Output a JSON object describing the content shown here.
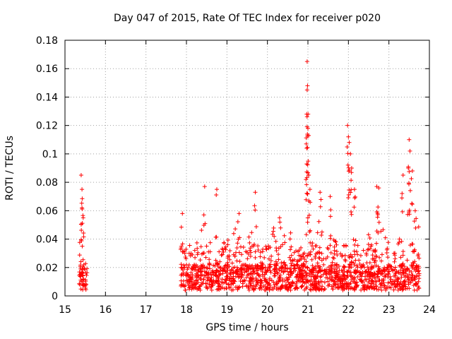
{
  "chart_data": {
    "type": "scatter",
    "title": "Day 047 of 2015, Rate Of TEC Index for receiver p020",
    "xlabel": "GPS time / hours",
    "ylabel": "ROTI / TECUs",
    "xlim": [
      15,
      24
    ],
    "ylim": [
      0,
      0.18
    ],
    "xticks": [
      "15",
      "16",
      "17",
      "18",
      "19",
      "20",
      "21",
      "22",
      "23",
      "24"
    ],
    "yticks": [
      "0",
      "0.02",
      "0.04",
      "0.06",
      "0.08",
      "0.1",
      "0.12",
      "0.14",
      "0.16",
      "0.18"
    ],
    "grid": true,
    "marker": "+",
    "color": "#ff0000",
    "series": [
      {
        "name": "ROTI",
        "segments": [
          {
            "x_start": 15.35,
            "x_end": 15.55,
            "typical_max": 0.035
          },
          {
            "x_start": 17.85,
            "x_end": 23.75,
            "typical_max": 0.045
          }
        ],
        "peaks": [
          {
            "x": 15.4,
            "y": 0.085
          },
          {
            "x": 15.42,
            "y": 0.075
          },
          {
            "x": 15.42,
            "y": 0.062
          },
          {
            "x": 15.45,
            "y": 0.055
          },
          {
            "x": 17.9,
            "y": 0.058
          },
          {
            "x": 18.45,
            "y": 0.077
          },
          {
            "x": 18.75,
            "y": 0.075
          },
          {
            "x": 19.3,
            "y": 0.058
          },
          {
            "x": 19.7,
            "y": 0.073
          },
          {
            "x": 20.3,
            "y": 0.055
          },
          {
            "x": 20.98,
            "y": 0.165
          },
          {
            "x": 20.99,
            "y": 0.148
          },
          {
            "x": 20.98,
            "y": 0.145
          },
          {
            "x": 20.97,
            "y": 0.128
          },
          {
            "x": 21.0,
            "y": 0.118
          },
          {
            "x": 20.96,
            "y": 0.107
          },
          {
            "x": 20.97,
            "y": 0.104
          },
          {
            "x": 21.02,
            "y": 0.085
          },
          {
            "x": 21.05,
            "y": 0.075
          },
          {
            "x": 21.3,
            "y": 0.073
          },
          {
            "x": 21.55,
            "y": 0.07
          },
          {
            "x": 21.98,
            "y": 0.12
          },
          {
            "x": 22.0,
            "y": 0.112
          },
          {
            "x": 22.02,
            "y": 0.108
          },
          {
            "x": 22.05,
            "y": 0.1
          },
          {
            "x": 22.08,
            "y": 0.09
          },
          {
            "x": 22.15,
            "y": 0.075
          },
          {
            "x": 22.7,
            "y": 0.077
          },
          {
            "x": 22.75,
            "y": 0.076
          },
          {
            "x": 23.35,
            "y": 0.085
          },
          {
            "x": 23.5,
            "y": 0.11
          },
          {
            "x": 23.52,
            "y": 0.102
          },
          {
            "x": 23.48,
            "y": 0.09
          },
          {
            "x": 23.58,
            "y": 0.088
          },
          {
            "x": 23.65,
            "y": 0.06
          }
        ]
      }
    ]
  }
}
